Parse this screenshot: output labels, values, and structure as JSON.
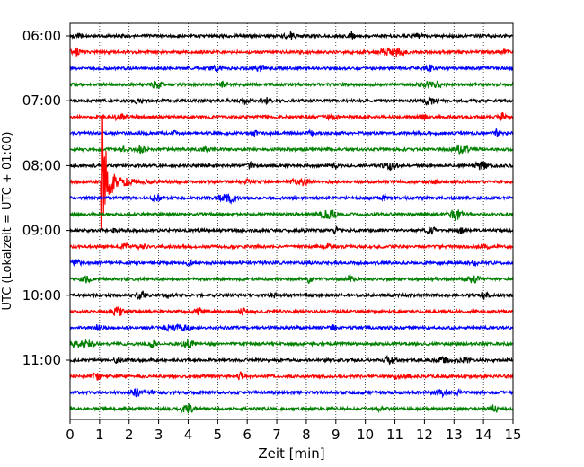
{
  "chart_data": {
    "type": "line",
    "title": "",
    "xlabel": "Zeit  [min]",
    "ylabel": "UTC (Lokalzeit = UTC + 01:00)",
    "xlim": [
      0,
      15
    ],
    "x_ticks": [
      0,
      1,
      2,
      3,
      4,
      5,
      6,
      7,
      8,
      9,
      10,
      11,
      12,
      13,
      14,
      15
    ],
    "y_tick_labels": [
      "06:00",
      "07:00",
      "08:00",
      "09:00",
      "10:00",
      "11:00"
    ],
    "grid": "vertical dotted",
    "row_minutes": 15,
    "trace_colors": [
      "#000000",
      "#ff0000",
      "#0000ff",
      "#008000"
    ],
    "traces": [
      {
        "start": "06:00",
        "color": "#000000"
      },
      {
        "start": "06:15",
        "color": "#ff0000"
      },
      {
        "start": "06:30",
        "color": "#0000ff"
      },
      {
        "start": "06:45",
        "color": "#008000"
      },
      {
        "start": "07:00",
        "color": "#000000"
      },
      {
        "start": "07:15",
        "color": "#ff0000"
      },
      {
        "start": "07:30",
        "color": "#0000ff"
      },
      {
        "start": "07:45",
        "color": "#008000"
      },
      {
        "start": "08:00",
        "color": "#000000"
      },
      {
        "start": "08:15",
        "color": "#ff0000"
      },
      {
        "start": "08:30",
        "color": "#0000ff"
      },
      {
        "start": "08:45",
        "color": "#008000"
      },
      {
        "start": "09:00",
        "color": "#000000"
      },
      {
        "start": "09:15",
        "color": "#ff0000"
      },
      {
        "start": "09:30",
        "color": "#0000ff"
      },
      {
        "start": "09:45",
        "color": "#008000"
      },
      {
        "start": "10:00",
        "color": "#000000"
      },
      {
        "start": "10:15",
        "color": "#ff0000"
      },
      {
        "start": "10:30",
        "color": "#0000ff"
      },
      {
        "start": "10:45",
        "color": "#008000"
      },
      {
        "start": "11:00",
        "color": "#000000"
      },
      {
        "start": "11:15",
        "color": "#ff0000"
      },
      {
        "start": "11:30",
        "color": "#0000ff"
      },
      {
        "start": "11:45",
        "color": "#008000"
      }
    ],
    "event": {
      "trace_start": "08:15",
      "time_min": 1.05,
      "description_visible": false
    }
  }
}
